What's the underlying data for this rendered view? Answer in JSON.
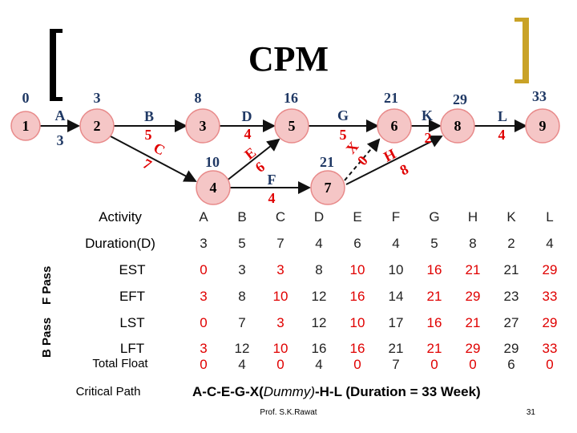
{
  "title": "CPM",
  "colors": {
    "node_fill": "#f5c6c6",
    "node_stroke": "#e88a8a",
    "critical": "#e00000",
    "arrow": "#111111",
    "bracket_gold": "#c9a227"
  },
  "network": {
    "nodes": [
      {
        "id": "1",
        "time": "0"
      },
      {
        "id": "2",
        "time": "3"
      },
      {
        "id": "3",
        "time": "8"
      },
      {
        "id": "4",
        "time": "10"
      },
      {
        "id": "5",
        "time": "16"
      },
      {
        "id": "6",
        "time": "21"
      },
      {
        "id": "7",
        "time": "21"
      },
      {
        "id": "8",
        "time": "29"
      },
      {
        "id": "9",
        "time": "33"
      }
    ],
    "edges": [
      {
        "label": "A",
        "duration": "3"
      },
      {
        "label": "B",
        "duration": "5"
      },
      {
        "label": "C",
        "duration": "7"
      },
      {
        "label": "D",
        "duration": "4"
      },
      {
        "label": "E",
        "duration": "6"
      },
      {
        "label": "F",
        "duration": "4"
      },
      {
        "label": "G",
        "duration": "5"
      },
      {
        "label": "X",
        "duration": "0"
      },
      {
        "label": "H",
        "duration": "8"
      },
      {
        "label": "K",
        "duration": "2"
      },
      {
        "label": "L",
        "duration": "4"
      }
    ]
  },
  "table": {
    "rows": [
      {
        "label": "Activity",
        "cells": [
          "A",
          "B",
          "C",
          "D",
          "E",
          "F",
          "G",
          "H",
          "K",
          "L"
        ]
      },
      {
        "label": "Duration(D)",
        "cells": [
          "3",
          "5",
          "7",
          "4",
          "6",
          "4",
          "5",
          "8",
          "2",
          "4"
        ]
      },
      {
        "label": "EST",
        "cells": [
          "0",
          "3",
          "3",
          "8",
          "10",
          "10",
          "16",
          "21",
          "21",
          "29"
        ]
      },
      {
        "label": "EFT",
        "cells": [
          "3",
          "8",
          "10",
          "12",
          "16",
          "14",
          "21",
          "29",
          "23",
          "33"
        ]
      },
      {
        "label": "LST",
        "cells": [
          "0",
          "7",
          "3",
          "12",
          "10",
          "17",
          "16",
          "21",
          "27",
          "29"
        ]
      },
      {
        "label": "LFT",
        "cells": [
          "3",
          "12",
          "10",
          "16",
          "16",
          "21",
          "21",
          "29",
          "29",
          "33"
        ]
      },
      {
        "label": "Total Float",
        "cells": [
          "0",
          "4",
          "0",
          "4",
          "0",
          "7",
          "0",
          "0",
          "6",
          "0"
        ]
      }
    ],
    "critical_columns": [
      0,
      2,
      4,
      6,
      7,
      9
    ],
    "critical_rows": [
      2,
      3,
      4,
      5,
      6
    ]
  },
  "forward_pass_label": "F Pass",
  "backward_pass_label": "B Pass",
  "critical_path_label": "Critical Path",
  "critical_path_prefix": "A-C-E-G-X(",
  "critical_path_dummy": "Dummy)",
  "critical_path_suffix": "-H-L (Duration = 33 Week)",
  "footer": "Prof. S.K.Rawat",
  "page_number": "31"
}
